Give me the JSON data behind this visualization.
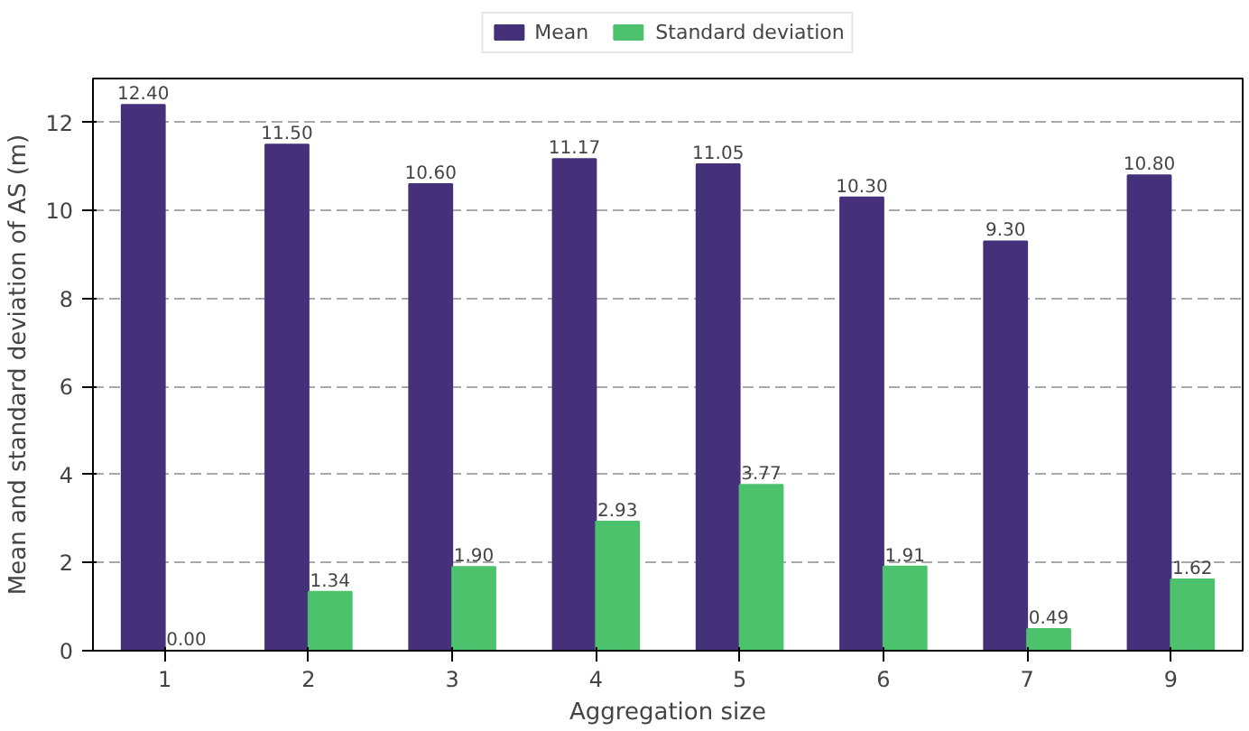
{
  "chart_data": {
    "type": "bar",
    "xlabel": "Aggregation size",
    "ylabel": "Mean and standard deviation of AS (m)",
    "categories": [
      "1",
      "2",
      "3",
      "4",
      "5",
      "6",
      "7",
      "9"
    ],
    "series": [
      {
        "name": "Mean",
        "color": "#45307a",
        "values": [
          12.4,
          11.5,
          10.6,
          11.17,
          11.05,
          10.3,
          9.3,
          10.8
        ],
        "value_labels": [
          "12.40",
          "11.50",
          "10.60",
          "11.17",
          "11.05",
          "10.30",
          "9.30",
          "10.80"
        ]
      },
      {
        "name": "Standard deviation",
        "color": "#4cc26c",
        "values": [
          0.0,
          1.34,
          1.9,
          2.93,
          3.77,
          1.91,
          0.49,
          1.62
        ],
        "value_labels": [
          "0.00",
          "1.34",
          "1.90",
          "2.93",
          "3.77",
          "1.91",
          "0.49",
          "1.62"
        ]
      }
    ],
    "ylim": [
      0,
      13
    ],
    "yticks": [
      0,
      2,
      4,
      6,
      8,
      10,
      12
    ],
    "grid": "y",
    "legend": "top"
  }
}
